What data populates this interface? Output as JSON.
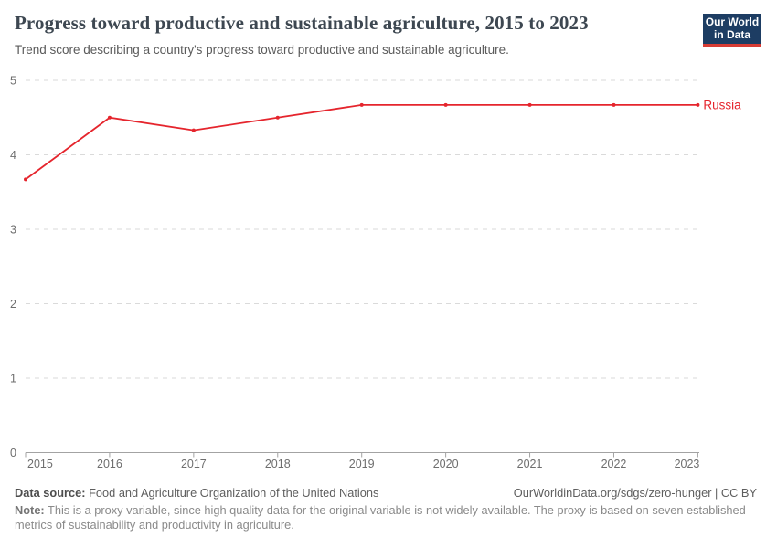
{
  "header": {
    "title": "Progress toward productive and sustainable agriculture, 2015 to 2023",
    "subtitle": "Trend score describing a country's progress toward productive and sustainable agriculture.",
    "logo": {
      "line1": "Our World",
      "line2": "in Data",
      "bg_color": "#1d3d63",
      "stripe_color": "#d73c34"
    }
  },
  "chart_data": {
    "type": "line",
    "title": "Progress toward productive and sustainable agriculture, 2015 to 2023",
    "x": [
      2015,
      2016,
      2017,
      2018,
      2019,
      2020,
      2021,
      2022,
      2023
    ],
    "series": [
      {
        "name": "Russia",
        "color": "#e5252d",
        "values": [
          3.67,
          4.5,
          4.33,
          4.5,
          4.67,
          4.67,
          4.67,
          4.67,
          4.67
        ]
      }
    ],
    "xlabel": "",
    "ylabel": "",
    "ylim": [
      0,
      5
    ],
    "yticks": [
      0,
      1,
      2,
      3,
      4,
      5
    ],
    "grid": "horizontal-dashed",
    "legend_position": "end-of-line-label"
  },
  "footer": {
    "datasource_label": "Data source:",
    "datasource_text": "Food and Agriculture Organization of the United Nations",
    "link": "OurWorldinData.org/sdgs/zero-hunger | CC BY",
    "note_label": "Note:",
    "note_text": "This is a proxy variable, since high quality data for the original variable is not widely available. The proxy is based on seven established metrics of sustainability and productivity in agriculture."
  },
  "colors": {
    "line": "#e5252d",
    "gridline": "#dadada",
    "axis": "#a3a3a3",
    "tick_text": "#6e6e6e",
    "title_text": "#3d4751",
    "subtitle_text": "#5b5b5b"
  }
}
